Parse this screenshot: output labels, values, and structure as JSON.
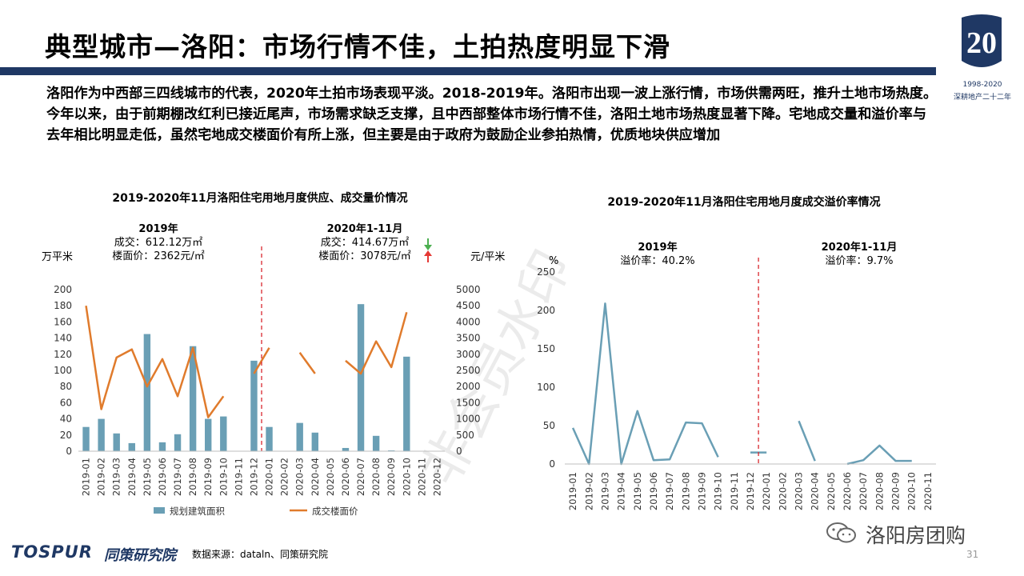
{
  "slide": {
    "title": "典型城市—洛阳：市场行情不佳，土拍热度明显下滑",
    "intro": "洛阳作为中西部三四线城市的代表，2020年土拍市场表现平淡。2018-2019年。洛阳市出现一波上涨行情，市场供需两旺，推升土地市场热度。今年以来，由于前期棚改红利已接近尾声，市场需求缺乏支撑，且中西部整体市场行情不佳，洛阳土地市场热度显著下降。宅地成交量和溢价率与去年相比明显走低，虽然宅地成交楼面价有所上涨，但主要是由于政府为鼓励企业参拍热情，优质地块供应增加",
    "page_number": "31",
    "watermark": "非会员水印"
  },
  "logo": {
    "number": "20",
    "years": "1998-2020",
    "caption": "深耕地产二十二年"
  },
  "footer": {
    "brand": "TOSPUR",
    "brand_cn": "同策研究院",
    "source": "数据来源：dataln、同策研究院",
    "wechat": "洛阳房团购"
  },
  "colors": {
    "bar": "#6a9fb5",
    "line_price": "#e07b2c",
    "line_premium": "#6a9fb5",
    "divider": "#d9272e",
    "title_bar": "#1f3864",
    "arrow_down": "#4caf50",
    "arrow_up": "#e53935"
  },
  "chart_data": [
    {
      "type": "bar+line",
      "title": "2019-2020年11月洛阳住宅用地月度供应、成交量价情况",
      "ylabel_left": "万平米",
      "ylabel_right": "元/平米",
      "ylim_left": [
        0,
        200
      ],
      "ylim_right": [
        0,
        5000
      ],
      "yticks_left": [
        "0",
        "20",
        "40",
        "60",
        "80",
        "100",
        "120",
        "140",
        "160",
        "180",
        "200"
      ],
      "yticks_right": [
        "0",
        "500",
        "1000",
        "1500",
        "2000",
        "2500",
        "3000",
        "3500",
        "4000",
        "4500",
        "5000"
      ],
      "categories": [
        "2019-01",
        "2019-02",
        "2019-03",
        "2019-04",
        "2019-05",
        "2019-06",
        "2019-07",
        "2019-08",
        "2019-09",
        "2019-10",
        "2019-11",
        "2019-12",
        "2020-01",
        "2020-02",
        "2020-03",
        "2020-04",
        "2020-05",
        "2020-06",
        "2020-07",
        "2020-08",
        "2020-09",
        "2020-10",
        "2020-11",
        "2020-12"
      ],
      "series": [
        {
          "name": "规划建筑面积",
          "kind": "bar",
          "values": [
            30,
            40,
            22,
            10,
            145,
            11,
            21,
            130,
            40,
            43,
            0,
            112,
            30,
            0,
            35,
            23,
            0,
            4,
            182,
            19,
            1,
            117,
            0,
            0
          ]
        },
        {
          "name": "成交楼面价",
          "kind": "line",
          "values": [
            4500,
            1300,
            2900,
            3150,
            2000,
            2850,
            1700,
            3200,
            1050,
            1700,
            null,
            2400,
            3200,
            null,
            3050,
            2400,
            null,
            2800,
            2400,
            3400,
            2600,
            4300,
            null,
            null
          ]
        }
      ],
      "divider_between": [
        "2019-12",
        "2020-01"
      ],
      "annotations": {
        "left_period": "2019年",
        "left_deal": "成交：612.12万㎡",
        "left_price": "楼面价：2362元/㎡",
        "right_period": "2020年1-11月",
        "right_deal": "成交：414.67万㎡",
        "right_price": "楼面价：3078元/㎡"
      },
      "legend_position": "bottom",
      "grid": false
    },
    {
      "type": "line",
      "title": "2019-2020年11月洛阳住宅用地月度成交溢价率情况",
      "ylabel": "%",
      "ylim": [
        0,
        250
      ],
      "yticks": [
        "0",
        "50",
        "100",
        "150",
        "200",
        "250"
      ],
      "categories": [
        "2019-01",
        "2019-02",
        "2019-03",
        "2019-04",
        "2019-05",
        "2019-06",
        "2019-07",
        "2019-08",
        "2019-09",
        "2019-10",
        "2019-11",
        "2019-12",
        "2020-01",
        "2020-02",
        "2020-03",
        "2020-04",
        "2020-05",
        "2020-06",
        "2020-07",
        "2020-08",
        "2020-09",
        "2020-10",
        "2020-11"
      ],
      "series": [
        {
          "name": "",
          "values": [
            47,
            0,
            209,
            0,
            69,
            5,
            6,
            54,
            53,
            9,
            null,
            15,
            15,
            null,
            56,
            4,
            null,
            0,
            5,
            24,
            4,
            4,
            null
          ]
        }
      ],
      "divider_between": [
        "2019-12",
        "2020-01"
      ],
      "annotations": {
        "left_period": "2019年",
        "left_rate": "溢价率：40.2%",
        "right_period": "2020年1-11月",
        "right_rate": "溢价率：9.7%"
      },
      "grid": false
    }
  ]
}
